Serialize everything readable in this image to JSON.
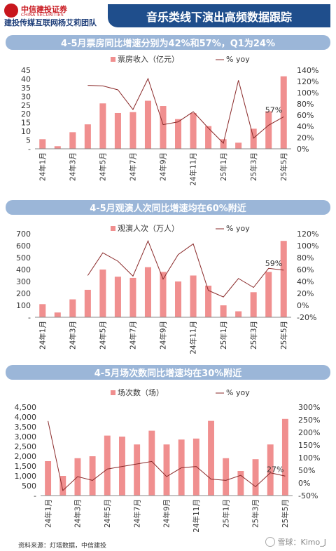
{
  "header": {
    "logo_cn": "中信建投证券",
    "logo_en": "CHINA SECURITIES",
    "team": "建投传媒互联网杨艾莉团队",
    "title": "音乐类线下演出高频数据跟踪"
  },
  "colors": {
    "bar": "#f08f8f",
    "line": "#8a2a2a",
    "header_bg": "#1f4e8c",
    "banner_bg": "#9bb6d8"
  },
  "chart_data": [
    {
      "type": "bar",
      "banner": "4-5月票房同比增速分别为42%和57%，Q1为24%",
      "legend_bar": "票房收入（亿元）",
      "legend_line": "% yoy",
      "categories": [
        "24年1月",
        "24年2月",
        "24年3月",
        "24年4月",
        "24年5月",
        "24年6月",
        "24年7月",
        "24年8月",
        "24年9月",
        "24年10月",
        "24年11月",
        "24年12月",
        "25年1月",
        "25年2月",
        "25年3月",
        "25年4月",
        "25年5月"
      ],
      "tick_labels": [
        "24年1月",
        "24年3月",
        "24年5月",
        "24年7月",
        "24年9月",
        "24年11月",
        "25年1月",
        "25年3月",
        "25年5月"
      ],
      "series": [
        {
          "name": "票房收入（亿元）",
          "axis": "left",
          "values": [
            5.5,
            1.5,
            9.5,
            14,
            26,
            20.5,
            21,
            27.5,
            24.5,
            17,
            20.5,
            13,
            5.5,
            3.5,
            11.5,
            21.5,
            41.5
          ]
        },
        {
          "name": "% yoy",
          "axis": "right",
          "values": [
            null,
            null,
            null,
            113,
            112,
            105,
            70,
            125,
            43,
            48,
            66,
            37,
            10,
            122,
            19,
            42,
            57
          ]
        }
      ],
      "ylim_left": [
        0,
        45
      ],
      "ylim_right": [
        0,
        140
      ],
      "yticks_left": [
        "-",
        "5",
        "10",
        "15",
        "20",
        "25",
        "30",
        "35",
        "40",
        "45"
      ],
      "yticks_right": [
        "0%",
        "20%",
        "40%",
        "60%",
        "80%",
        "100%",
        "120%",
        "140%"
      ],
      "annotation": "57%"
    },
    {
      "type": "bar",
      "banner": "4-5月观演人次同比增速均在60%附近",
      "legend_bar": "观演人次（万人）",
      "legend_line": "% yoy",
      "categories": [
        "24年1月",
        "24年2月",
        "24年3月",
        "24年4月",
        "24年5月",
        "24年6月",
        "24年7月",
        "24年8月",
        "24年9月",
        "24年10月",
        "24年11月",
        "24年12月",
        "25年1月",
        "25年2月",
        "25年3月",
        "25年4月",
        "25年5月"
      ],
      "tick_labels": [
        "24年1月",
        "24年3月",
        "24年5月",
        "24年7月",
        "24年9月",
        "24年11月",
        "25年1月",
        "25年3月",
        "25年5月"
      ],
      "series": [
        {
          "name": "观演人次（万人）",
          "axis": "left",
          "values": [
            110,
            40,
            150,
            230,
            400,
            340,
            330,
            420,
            380,
            300,
            350,
            265,
            100,
            50,
            210,
            380,
            640
          ]
        },
        {
          "name": "% yoy",
          "axis": "right",
          "values": [
            null,
            null,
            null,
            50,
            88,
            74,
            49,
            108,
            44,
            85,
            103,
            25,
            14,
            45,
            30,
            62,
            59
          ]
        }
      ],
      "ylim_left": [
        0,
        700
      ],
      "ylim_right": [
        -20,
        120
      ],
      "yticks_left": [
        "-",
        "100",
        "200",
        "300",
        "400",
        "500",
        "600",
        "700"
      ],
      "yticks_right": [
        "-20%",
        "0%",
        "20%",
        "40%",
        "60%",
        "80%",
        "100%",
        "120%"
      ],
      "annotation": "59%"
    },
    {
      "type": "bar",
      "banner": "4-5月场次数同比增速均在30%附近",
      "legend_bar": "场次数（场）",
      "legend_line": "% yoy",
      "categories": [
        "24年1月",
        "24年2月",
        "24年3月",
        "24年4月",
        "24年5月",
        "24年6月",
        "24年7月",
        "24年8月",
        "24年9月",
        "24年10月",
        "24年11月",
        "24年12月",
        "25年1月",
        "25年2月",
        "25年3月",
        "25年4月",
        "25年5月"
      ],
      "tick_labels": [
        "24年1月",
        "24年3月",
        "24年5月",
        "24年7月",
        "24年9月",
        "24年11月",
        "25年1月",
        "25年3月",
        "25年5月"
      ],
      "series": [
        {
          "name": "场次数（场）",
          "axis": "left",
          "values": [
            1750,
            1000,
            1900,
            2000,
            3050,
            3000,
            2600,
            3300,
            2600,
            2850,
            2900,
            3800,
            1900,
            1250,
            1850,
            2600,
            3900
          ]
        },
        {
          "name": "% yoy",
          "axis": "right",
          "values": [
            245,
            -30,
            25,
            10,
            55,
            65,
            75,
            85,
            25,
            60,
            65,
            15,
            10,
            30,
            -15,
            40,
            27
          ]
        }
      ],
      "ylim_left": [
        0,
        4500
      ],
      "ylim_right": [
        -50,
        300
      ],
      "yticks_left": [
        "-",
        "500",
        "1,000",
        "1,500",
        "2,000",
        "2,500",
        "3,000",
        "3,500",
        "4,000",
        "4,500"
      ],
      "yticks_right": [
        "-50%",
        "0%",
        "50%",
        "100%",
        "150%",
        "200%",
        "250%",
        "300%"
      ],
      "annotation": "27%"
    }
  ],
  "footer": {
    "source": "资料来源：灯塔数据，中信建投",
    "watermark": "雪球：Kimo_J"
  }
}
